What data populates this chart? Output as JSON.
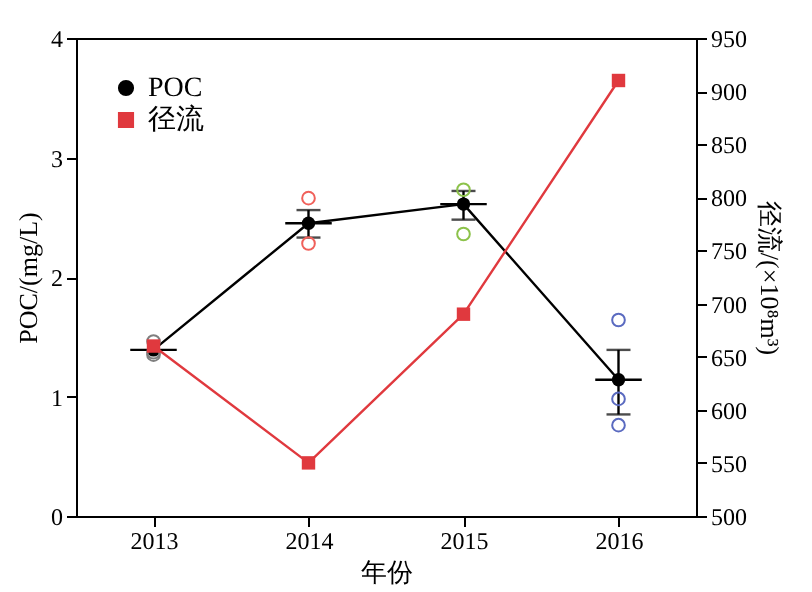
{
  "chart_data": {
    "type": "line",
    "xlabel": "年份",
    "ylabel": "POC/(mg/L)",
    "y2label": "径流/(×10⁸m³)",
    "x": [
      2013,
      2014,
      2015,
      2016
    ],
    "xlim": [
      2012.5,
      2016.5
    ],
    "xticks": [
      2013,
      2014,
      2015,
      2016
    ],
    "ylim": [
      0,
      4
    ],
    "yticks": [
      0,
      1,
      2,
      3,
      4
    ],
    "y2lim": [
      500,
      950
    ],
    "y2ticks": [
      500,
      550,
      600,
      650,
      700,
      750,
      800,
      850,
      900,
      950
    ],
    "grid": false,
    "legend": "top left",
    "line_style": "solid",
    "series": [
      {
        "name": "POC",
        "color": "#000000",
        "marker": "circle",
        "values": [
          1.39,
          2.45,
          2.61,
          1.14
        ],
        "errors": [
          null,
          [
            2.33,
            2.56
          ],
          [
            2.48,
            2.72
          ],
          [
            0.85,
            1.39
          ]
        ],
        "xerrors": [
          0.15,
          0.15,
          0.15,
          0.15
        ]
      },
      {
        "name": "径流",
        "axis": "y2",
        "color": "#e0393e",
        "marker": "square",
        "values": [
          660,
          550,
          690,
          910
        ]
      },
      {
        "type": "scatter",
        "color": "#7f7f7f",
        "marker": "circle",
        "x": [
          2013,
          2013,
          2013
        ],
        "values": [
          1.46,
          1.35,
          1.37
        ]
      },
      {
        "type": "scatter",
        "color": "#f0605a",
        "marker": "circle",
        "x": [
          2014,
          2014
        ],
        "values": [
          2.66,
          2.28
        ]
      },
      {
        "type": "scatter",
        "color": "#8cc24a",
        "marker": "circle",
        "x": [
          2015,
          2015
        ],
        "values": [
          2.73,
          2.36
        ]
      },
      {
        "type": "scatter",
        "color": "#5a6ac0",
        "marker": "circle",
        "x": [
          2016,
          2016,
          2016
        ],
        "values": [
          1.64,
          0.98,
          0.76
        ]
      }
    ]
  }
}
